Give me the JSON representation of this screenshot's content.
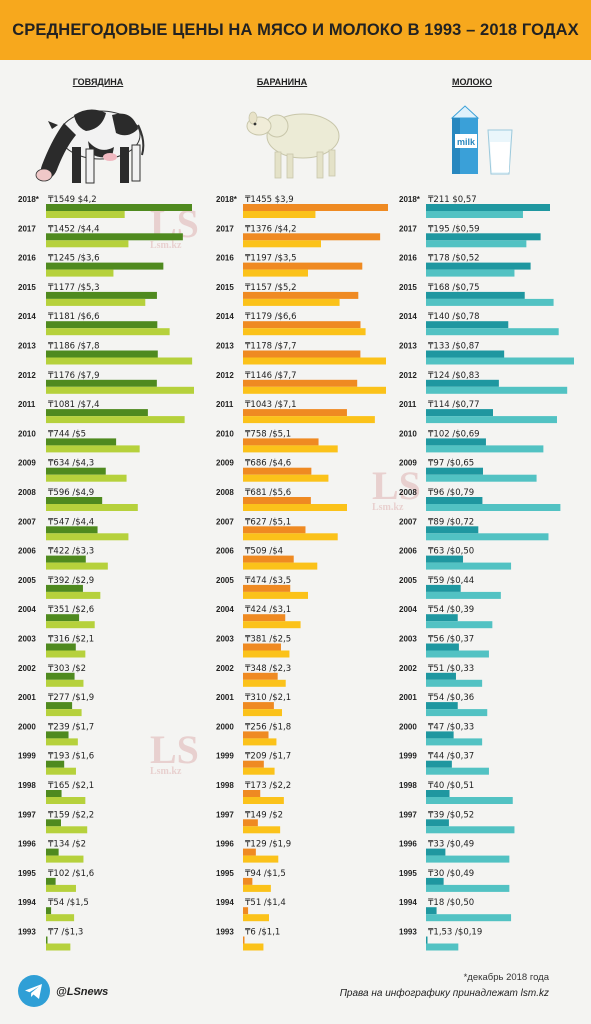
{
  "title": "СРЕДНЕГОДОВЫЕ ЦЕНЫ НА МЯСО И МОЛОКО В 1993 – 2018 ГОДАХ",
  "columns": {
    "beef": "ГОВЯДИНА",
    "lamb": "БАРАНИНА",
    "milk": "МОЛОКО"
  },
  "milk_pack_text": "milk",
  "footnote": "*декабрь 2018 года",
  "credit": "Права на инфографику принадлежат lsm.kz",
  "social_handle": "@LSnews",
  "watermark": {
    "logo": "LS",
    "site": "Lsm.kz"
  },
  "icons": [
    "telegram-icon",
    "cow-icon",
    "sheep-icon",
    "milk-carton-icon",
    "milk-glass-icon"
  ],
  "colors": {
    "header": "#f7a81d",
    "beef_tenge": "#4f8a1f",
    "beef_usd": "#b6d13c",
    "lamb_tenge": "#ef8a22",
    "lamb_usd": "#fbc21a",
    "milk_tenge": "#1f97a0",
    "milk_usd": "#52c2c3"
  },
  "chart_data": {
    "type": "bar",
    "categories": [
      "2018*",
      "2017",
      "2016",
      "2015",
      "2014",
      "2013",
      "2012",
      "2011",
      "2010",
      "2009",
      "2008",
      "2007",
      "2006",
      "2005",
      "2004",
      "2003",
      "2002",
      "2001",
      "2000",
      "1999",
      "1998",
      "1997",
      "1996",
      "1995",
      "1994",
      "1993"
    ],
    "series": [
      {
        "key": "beef_tenge",
        "group": "beef",
        "currency": "₸",
        "values": [
          1549,
          1452,
          1245,
          1177,
          1181,
          1186,
          1176,
          1081,
          744,
          634,
          596,
          547,
          422,
          392,
          351,
          316,
          303,
          277,
          239,
          193,
          165,
          159,
          134,
          102,
          54,
          7
        ]
      },
      {
        "key": "beef_usd",
        "group": "beef",
        "currency": "$",
        "values": [
          "4,2",
          "4,4",
          "3,6",
          "5,3",
          "6,6",
          "7,8",
          "7,9",
          "7,4",
          "5",
          "4,3",
          "4,9",
          "4,4",
          "3,3",
          "2,9",
          "2,6",
          "2,1",
          "2",
          "1,9",
          "1,7",
          "1,6",
          "2,1",
          "2,2",
          "2",
          "1,6",
          "1,5",
          "1,3"
        ]
      },
      {
        "key": "lamb_tenge",
        "group": "lamb",
        "currency": "₸",
        "values": [
          1455,
          1376,
          1197,
          1157,
          1179,
          1178,
          1146,
          1043,
          758,
          686,
          681,
          627,
          509,
          474,
          424,
          381,
          348,
          310,
          256,
          209,
          173,
          149,
          129,
          94,
          51,
          6
        ]
      },
      {
        "key": "lamb_usd",
        "group": "lamb",
        "currency": "$",
        "values": [
          "3,9",
          "4,2",
          "3,5",
          "5,2",
          "6,6",
          "7,7",
          "7,7",
          "7,1",
          "5,1",
          "4,6",
          "5,6",
          "5,1",
          "4",
          "3,5",
          "3,1",
          "2,5",
          "2,3",
          "2,1",
          "1,8",
          "1,7",
          "2,2",
          "2",
          "1,9",
          "1,5",
          "1,4",
          "1,1"
        ]
      },
      {
        "key": "milk_tenge",
        "group": "milk",
        "currency": "₸",
        "values": [
          211,
          195,
          178,
          168,
          140,
          133,
          124,
          114,
          102,
          97,
          96,
          89,
          63,
          59,
          54,
          56,
          51,
          54,
          47,
          44,
          40,
          39,
          33,
          30,
          18,
          "1,53"
        ]
      },
      {
        "key": "milk_usd",
        "group": "milk",
        "currency": "$",
        "values": [
          "0,57",
          "0,59",
          "0,52",
          "0,75",
          "0,78",
          "0,87",
          "0,83",
          "0,77",
          "0,69",
          "0,65",
          "0,79",
          "0,72",
          "0,50",
          "0,44",
          "0,39",
          "0,37",
          "0,33",
          "0,36",
          "0,33",
          "0,37",
          "0,51",
          "0,52",
          "0,49",
          "0,49",
          "0,50",
          "0,19"
        ]
      }
    ]
  }
}
